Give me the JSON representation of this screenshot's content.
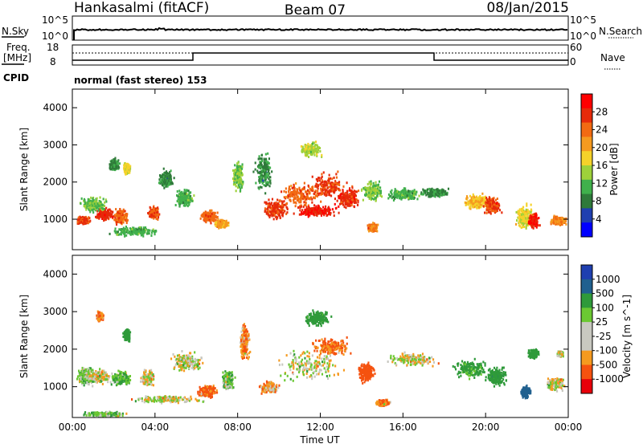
{
  "header": {
    "station": "Hankasalmi (fitACF)",
    "beam": "Beam 07",
    "date": "08/Jan/2015"
  },
  "sky_panel": {
    "left_label": "N.Sky",
    "left_ticks": [
      "10^5",
      "10^0"
    ],
    "right_ticks": [
      "10^5",
      "10^0"
    ],
    "right_label": "N.Search"
  },
  "freq_panel": {
    "left_label_line1": "Freq.",
    "left_label_line2": "[MHz]",
    "left_ticks": [
      "18",
      "8"
    ],
    "right_ticks": [
      "60",
      "0"
    ],
    "right_label": "Nave"
  },
  "cpid": {
    "label": "CPID",
    "text": "normal (fast stereo) 153"
  },
  "colors": {
    "frame": "#000000",
    "scatter_gray": "#c8c8c0",
    "power_scale": [
      "#0000ff",
      "#1f3fb0",
      "#2f7a3a",
      "#40b04c",
      "#9ed13a",
      "#f5d22a",
      "#f59a1f",
      "#f26a12",
      "#e62a0a",
      "#ff0000"
    ],
    "velocity_scale": [
      "#e8000a",
      "#f5520f",
      "#f59a1f",
      "#c8c8c0",
      "#c8c8c0",
      "#6bc832",
      "#2f9a3a",
      "#20608f",
      "#1f3fb0"
    ]
  },
  "chart_data": [
    {
      "type": "heatmap",
      "name": "power",
      "ylabel": "Slant Range [km]",
      "ylim": [
        180,
        4500
      ],
      "yticks": [
        "1000",
        "2000",
        "3000",
        "4000"
      ],
      "yticks_values": [
        1000,
        2000,
        3000,
        4000
      ],
      "x_ticks": [
        "00:00",
        "04:00",
        "08:00",
        "12:00",
        "16:00",
        "20:00",
        "00:00"
      ],
      "x_ticks_hours": [
        0,
        4,
        8,
        12,
        16,
        20,
        24
      ],
      "colorbar_label": "Power [dB]",
      "colorbar_ticks": [
        "4",
        "8",
        "12",
        "16",
        "20",
        "24",
        "28"
      ],
      "colorbar_range": [
        0,
        30
      ],
      "blobs": [
        {
          "t": 0.5,
          "r": 1000,
          "dt": 0.4,
          "dr": 120,
          "v": 26
        },
        {
          "t": 1.5,
          "r": 1150,
          "dt": 0.5,
          "dr": 200,
          "v": 27
        },
        {
          "t": 2.3,
          "r": 1100,
          "dt": 0.4,
          "dr": 250,
          "v": 24
        },
        {
          "t": 1.0,
          "r": 1400,
          "dt": 0.8,
          "dr": 250,
          "v": 12
        },
        {
          "t": 2.6,
          "r": 2400,
          "dt": 0.2,
          "dr": 200,
          "v": 16
        },
        {
          "t": 2.0,
          "r": 2500,
          "dt": 0.3,
          "dr": 200,
          "v": 8
        },
        {
          "t": 3.9,
          "r": 1200,
          "dt": 0.3,
          "dr": 200,
          "v": 25
        },
        {
          "t": 3.0,
          "r": 700,
          "dt": 1.5,
          "dr": 150,
          "v": 10
        },
        {
          "t": 4.5,
          "r": 2100,
          "dt": 0.4,
          "dr": 300,
          "v": 8
        },
        {
          "t": 5.4,
          "r": 1600,
          "dt": 0.5,
          "dr": 300,
          "v": 10
        },
        {
          "t": 6.6,
          "r": 1100,
          "dt": 0.5,
          "dr": 200,
          "v": 24
        },
        {
          "t": 7.2,
          "r": 900,
          "dt": 0.4,
          "dr": 150,
          "v": 20
        },
        {
          "t": 8.0,
          "r": 2200,
          "dt": 0.3,
          "dr": 500,
          "v": 12
        },
        {
          "t": 9.2,
          "r": 2300,
          "dt": 0.5,
          "dr": 600,
          "v": 8
        },
        {
          "t": 9.8,
          "r": 1300,
          "dt": 0.8,
          "dr": 350,
          "v": 26
        },
        {
          "t": 11.0,
          "r": 1700,
          "dt": 1.2,
          "dr": 400,
          "v": 24
        },
        {
          "t": 12.3,
          "r": 1900,
          "dt": 1.0,
          "dr": 450,
          "v": 26
        },
        {
          "t": 13.3,
          "r": 1600,
          "dt": 0.8,
          "dr": 350,
          "v": 27
        },
        {
          "t": 11.8,
          "r": 1250,
          "dt": 1.2,
          "dr": 200,
          "v": 28
        },
        {
          "t": 11.5,
          "r": 2900,
          "dt": 0.6,
          "dr": 250,
          "v": 14
        },
        {
          "t": 14.5,
          "r": 800,
          "dt": 0.3,
          "dr": 150,
          "v": 22
        },
        {
          "t": 14.5,
          "r": 1800,
          "dt": 0.6,
          "dr": 350,
          "v": 12
        },
        {
          "t": 16.0,
          "r": 1700,
          "dt": 1.0,
          "dr": 200,
          "v": 10
        },
        {
          "t": 17.5,
          "r": 1750,
          "dt": 0.8,
          "dr": 150,
          "v": 8
        },
        {
          "t": 19.5,
          "r": 1500,
          "dt": 0.8,
          "dr": 250,
          "v": 18
        },
        {
          "t": 20.3,
          "r": 1400,
          "dt": 0.5,
          "dr": 300,
          "v": 25
        },
        {
          "t": 21.8,
          "r": 1100,
          "dt": 0.5,
          "dr": 400,
          "v": 16
        },
        {
          "t": 22.3,
          "r": 1000,
          "dt": 0.3,
          "dr": 250,
          "v": 28
        },
        {
          "t": 23.5,
          "r": 1000,
          "dt": 0.5,
          "dr": 150,
          "v": 22
        }
      ]
    },
    {
      "type": "heatmap",
      "name": "velocity",
      "ylabel": "Slant Range [km]",
      "ylim": [
        180,
        4500
      ],
      "yticks": [
        "1000",
        "2000",
        "3000",
        "4000"
      ],
      "yticks_values": [
        1000,
        2000,
        3000,
        4000
      ],
      "xlabel": "Time UT",
      "x_ticks": [
        "00:00",
        "04:00",
        "08:00",
        "12:00",
        "16:00",
        "20:00",
        "00:00"
      ],
      "x_ticks_hours": [
        0,
        4,
        8,
        12,
        16,
        20,
        24
      ],
      "colorbar_label": "Velocity [m s^-1]",
      "colorbar_ticks": [
        "1000",
        "500",
        "100",
        "25",
        "-25",
        "-100",
        "-500",
        "-1000"
      ],
      "colorbar_range": [
        -1000,
        1000
      ],
      "blobs": [
        {
          "t": 0.6,
          "r": 1300,
          "dt": 0.5,
          "dr": 300,
          "v": 60
        },
        {
          "t": 1.2,
          "r": 1300,
          "dt": 0.8,
          "dr": 250,
          "v": 0
        },
        {
          "t": 2.3,
          "r": 1250,
          "dt": 0.6,
          "dr": 250,
          "v": 80
        },
        {
          "t": 3.6,
          "r": 1250,
          "dt": 0.4,
          "dr": 250,
          "v": 0
        },
        {
          "t": 2.6,
          "r": 2400,
          "dt": 0.2,
          "dr": 200,
          "v": 300
        },
        {
          "t": 1.3,
          "r": 2900,
          "dt": 0.2,
          "dr": 150,
          "v": -100
        },
        {
          "t": 4.5,
          "r": 700,
          "dt": 2.0,
          "dr": 120,
          "v": 0
        },
        {
          "t": 5.5,
          "r": 1700,
          "dt": 1.0,
          "dr": 300,
          "v": 0
        },
        {
          "t": 6.5,
          "r": 900,
          "dt": 0.6,
          "dr": 200,
          "v": -120
        },
        {
          "t": 7.5,
          "r": 1200,
          "dt": 0.4,
          "dr": 300,
          "v": 80
        },
        {
          "t": 8.3,
          "r": 2200,
          "dt": 0.3,
          "dr": 600,
          "v": -80
        },
        {
          "t": 9.5,
          "r": 1000,
          "dt": 0.6,
          "dr": 200,
          "v": -60
        },
        {
          "t": 11.5,
          "r": 1600,
          "dt": 2.0,
          "dr": 500,
          "v": 0
        },
        {
          "t": 12.5,
          "r": 2100,
          "dt": 1.2,
          "dr": 300,
          "v": -120
        },
        {
          "t": 11.8,
          "r": 2850,
          "dt": 0.8,
          "dr": 250,
          "v": 200
        },
        {
          "t": 14.2,
          "r": 1400,
          "dt": 0.5,
          "dr": 300,
          "v": -300
        },
        {
          "t": 15.0,
          "r": 600,
          "dt": 0.4,
          "dr": 120,
          "v": -100
        },
        {
          "t": 16.5,
          "r": 1750,
          "dt": 1.5,
          "dr": 200,
          "v": 0
        },
        {
          "t": 19.3,
          "r": 1500,
          "dt": 1.0,
          "dr": 300,
          "v": 150
        },
        {
          "t": 20.5,
          "r": 1300,
          "dt": 0.6,
          "dr": 300,
          "v": 400
        },
        {
          "t": 21.9,
          "r": 900,
          "dt": 0.3,
          "dr": 200,
          "v": 700
        },
        {
          "t": 23.3,
          "r": 1100,
          "dt": 0.6,
          "dr": 200,
          "v": 0
        },
        {
          "t": 22.3,
          "r": 1900,
          "dt": 0.3,
          "dr": 150,
          "v": 300
        },
        {
          "t": 23.6,
          "r": 1900,
          "dt": 0.2,
          "dr": 100,
          "v": 0
        },
        {
          "t": 1.5,
          "r": 300,
          "dt": 1.2,
          "dr": 80,
          "v": 80
        }
      ]
    }
  ]
}
